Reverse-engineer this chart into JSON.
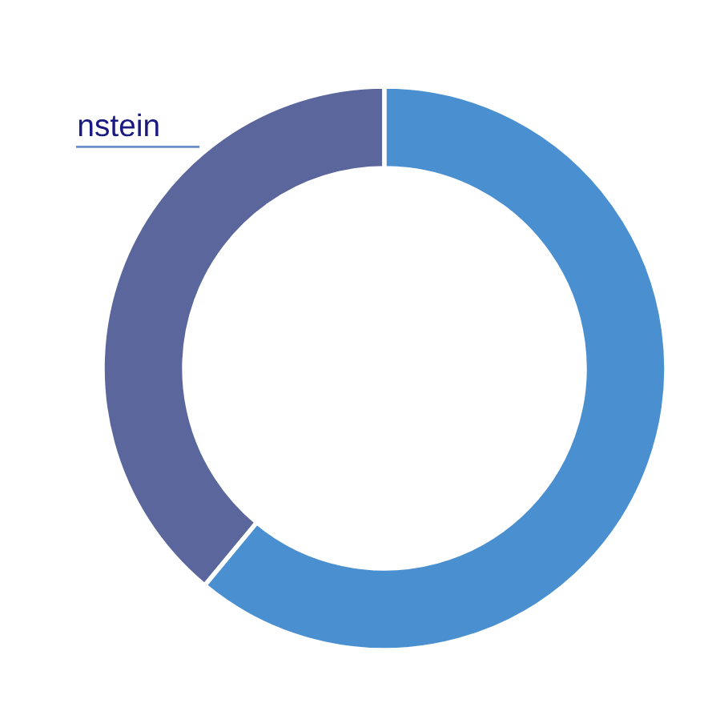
{
  "chart_data": {
    "type": "donut",
    "categories": [
      "nstein",
      null
    ],
    "values": [
      39,
      61
    ],
    "colors": [
      "#5a669c",
      "#4a90d0"
    ]
  }
}
